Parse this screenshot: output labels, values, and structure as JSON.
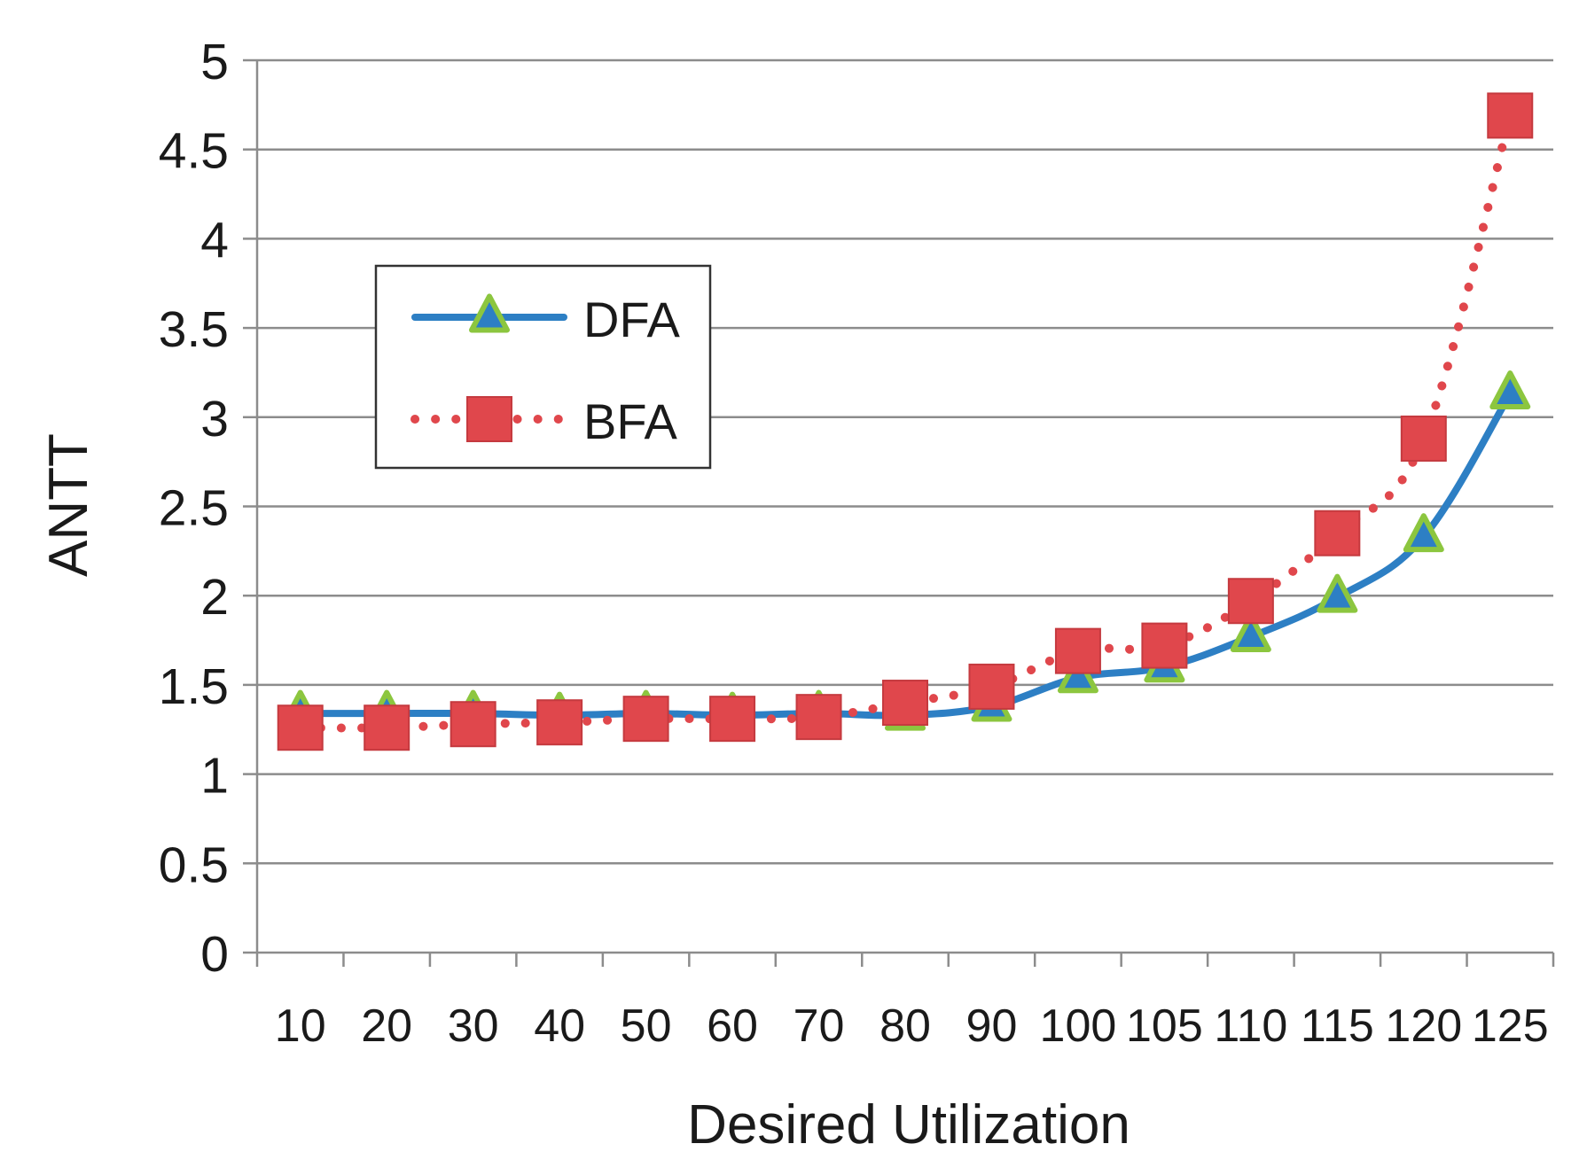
{
  "chart_data": {
    "type": "line",
    "title": "",
    "xlabel": "Desired Utilization",
    "ylabel": "ANTT",
    "categories": [
      "10",
      "20",
      "30",
      "40",
      "50",
      "60",
      "70",
      "80",
      "90",
      "100",
      "105",
      "110",
      "115",
      "120",
      "125"
    ],
    "ylim": [
      0,
      5
    ],
    "yticks": [
      "0",
      "0.5",
      "1",
      "1.5",
      "2",
      "2.5",
      "3",
      "3.5",
      "4",
      "4.5",
      "5"
    ],
    "grid": true,
    "legend_position": "top-left",
    "series": [
      {
        "name": "DFA",
        "color": "#2d7fc4",
        "marker": "triangle",
        "marker_fill": "#2d7fc4",
        "marker_stroke": "#8cc63f",
        "line_style": "solid",
        "values": [
          1.34,
          1.34,
          1.34,
          1.33,
          1.34,
          1.33,
          1.34,
          1.33,
          1.38,
          1.54,
          1.6,
          1.77,
          1.99,
          2.33,
          3.13
        ]
      },
      {
        "name": "BFA",
        "color": "#e0474c",
        "marker": "square",
        "marker_fill": "#e0474c",
        "marker_stroke": "#c53a3f",
        "line_style": "dotted",
        "values": [
          1.26,
          1.26,
          1.28,
          1.29,
          1.31,
          1.31,
          1.32,
          1.4,
          1.49,
          1.69,
          1.72,
          1.97,
          2.35,
          2.88,
          4.69
        ]
      }
    ]
  }
}
